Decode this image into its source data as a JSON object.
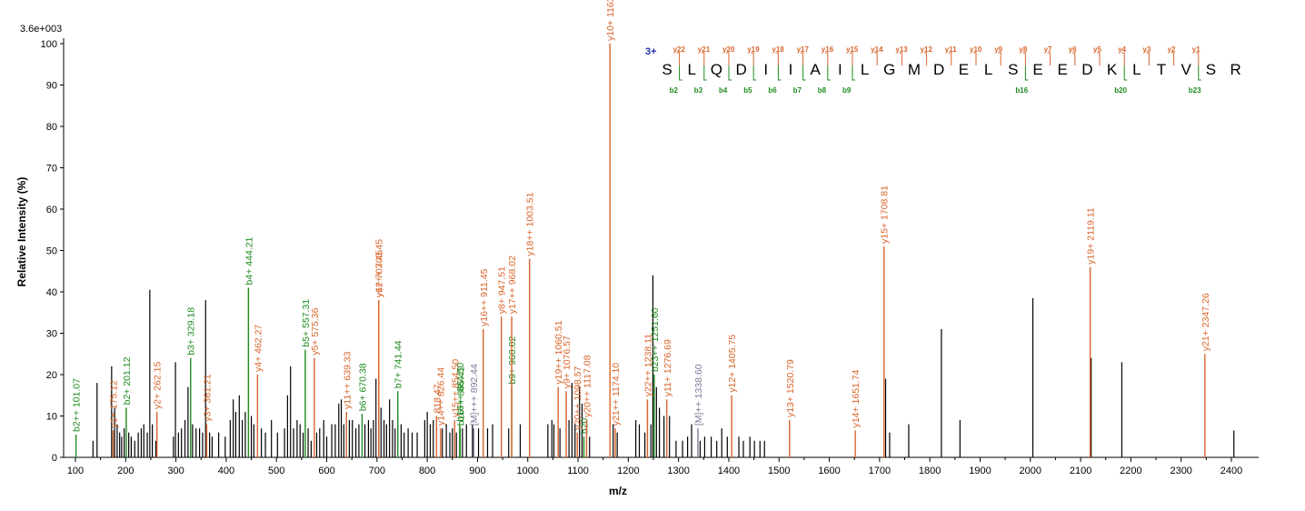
{
  "colors": {
    "y_ion": "#d9652b",
    "b_ion": "#1e8a1e",
    "precursor": "#7b7b9b",
    "unassigned": "#000000",
    "charge": "#1f2fa8"
  },
  "scale_label": "3.6e+003",
  "chart_data": {
    "type": "bar",
    "xlabel": "m/z",
    "ylabel": "Relative   Intensity (%)",
    "xlim": [
      80,
      2450
    ],
    "ylim": [
      0,
      100
    ],
    "x_ticks": [
      100,
      200,
      300,
      400,
      500,
      600,
      700,
      800,
      900,
      1000,
      1100,
      1200,
      1300,
      1400,
      1500,
      1600,
      1700,
      1800,
      1900,
      2000,
      2100,
      2200,
      2300,
      2400
    ],
    "y_ticks": [
      0,
      10,
      20,
      30,
      40,
      50,
      60,
      70,
      80,
      90,
      100
    ],
    "labeled_peaks": [
      {
        "mz": 101.07,
        "intensity": 5.5,
        "label": "b2++ 101.07",
        "ion": "b"
      },
      {
        "mz": 175.12,
        "intensity": 6.5,
        "label": "y1+ 175.12",
        "ion": "y"
      },
      {
        "mz": 201.12,
        "intensity": 12,
        "label": "b2+ 201.12",
        "ion": "b"
      },
      {
        "mz": 262.15,
        "intensity": 11,
        "label": "y2+ 262.15",
        "ion": "y"
      },
      {
        "mz": 329.18,
        "intensity": 24,
        "label": "b3+ 329.18",
        "ion": "b"
      },
      {
        "mz": 361.21,
        "intensity": 8,
        "label": "y3+ 361.21",
        "ion": "y"
      },
      {
        "mz": 444.21,
        "intensity": 41,
        "label": "b4+ 444.21",
        "ion": "b"
      },
      {
        "mz": 462.27,
        "intensity": 20,
        "label": "y4+ 462.27",
        "ion": "y"
      },
      {
        "mz": 557.31,
        "intensity": 26,
        "label": "b5+ 557.31",
        "ion": "b"
      },
      {
        "mz": 575.36,
        "intensity": 24,
        "label": "y5+ 575.36",
        "ion": "y"
      },
      {
        "mz": 639.33,
        "intensity": 11,
        "label": "y11++ 639.33",
        "ion": "y"
      },
      {
        "mz": 670.38,
        "intensity": 10.5,
        "label": "b6+ 670.38",
        "ion": "b"
      },
      {
        "mz": 703.45,
        "intensity": 38,
        "label": "y6+ 703.45",
        "ion": "y"
      },
      {
        "mz": 703.45,
        "intensity": 38,
        "label": "y12++ 703.45",
        "ion": "y"
      },
      {
        "mz": 741.44,
        "intensity": 16,
        "label": "b7+ 741.44",
        "ion": "b"
      },
      {
        "mz": 818.47,
        "intensity": 10,
        "label": "818.47",
        "ion": "y"
      },
      {
        "mz": 826.44,
        "intensity": 7,
        "label": "y14++ 826.44",
        "ion": "y"
      },
      {
        "mz": 854.5,
        "intensity": 9,
        "label": "y15++ 854.50",
        "ion": "y"
      },
      {
        "mz": 864.5,
        "intensity": 8,
        "label": "b16++ 864.50",
        "ion": "b"
      },
      {
        "mz": 865.41,
        "intensity": 7,
        "label": "b16++ 865.41",
        "ion": "b"
      },
      {
        "mz": 892.44,
        "intensity": 7,
        "label": "[M]+++ 892.44",
        "ion": "M"
      },
      {
        "mz": 911.45,
        "intensity": 31,
        "label": "y16++ 911.45",
        "ion": "y"
      },
      {
        "mz": 947.51,
        "intensity": 34,
        "label": "y8+ 947.51",
        "ion": "y"
      },
      {
        "mz": 968.02,
        "intensity": 17,
        "label": "b9+ 968.02",
        "ion": "b"
      },
      {
        "mz": 968.02,
        "intensity": 34,
        "label": "y17++ 968.02",
        "ion": "y"
      },
      {
        "mz": 1003.51,
        "intensity": 48,
        "label": "y18++ 1003.51",
        "ion": "y"
      },
      {
        "mz": 1060.51,
        "intensity": 17,
        "label": "y19++ 1060.51",
        "ion": "y"
      },
      {
        "mz": 1076.57,
        "intensity": 16,
        "label": "y9+ 1076.57",
        "ion": "y"
      },
      {
        "mz": 1098.57,
        "intensity": 6,
        "label": "y20++ 1098.57",
        "ion": "y"
      },
      {
        "mz": 1111.7,
        "intensity": 5,
        "label": "b20",
        "ion": "b"
      },
      {
        "mz": 1117.08,
        "intensity": 9,
        "label": "y20++ 1117.08",
        "ion": "y"
      },
      {
        "mz": 1163.58,
        "intensity": 100,
        "label": "y10+ 1163.58",
        "ion": "y"
      },
      {
        "mz": 1174.1,
        "intensity": 7,
        "label": "y21++ 1174.10",
        "ion": "y"
      },
      {
        "mz": 1238.11,
        "intensity": 14,
        "label": "y22++ 1238.11",
        "ion": "y"
      },
      {
        "mz": 1251.6,
        "intensity": 20,
        "label": "b23++ 1251.60",
        "ion": "b"
      },
      {
        "mz": 1276.69,
        "intensity": 14,
        "label": "y11+ 1276.69",
        "ion": "y"
      },
      {
        "mz": 1338.6,
        "intensity": 7,
        "label": "[M]++ 1338.60",
        "ion": "M"
      },
      {
        "mz": 1405.75,
        "intensity": 15,
        "label": "y12+ 1405.75",
        "ion": "y"
      },
      {
        "mz": 1520.79,
        "intensity": 9,
        "label": "y13+ 1520.79",
        "ion": "y"
      },
      {
        "mz": 1651.74,
        "intensity": 6.5,
        "label": "y14+ 1651.74",
        "ion": "y"
      },
      {
        "mz": 1708.81,
        "intensity": 51,
        "label": "y15+ 1708.81",
        "ion": "y"
      },
      {
        "mz": 2119.11,
        "intensity": 46,
        "label": "y19+ 2119.11",
        "ion": "y"
      },
      {
        "mz": 2347.26,
        "intensity": 25,
        "label": "y21+ 2347.26",
        "ion": "y"
      }
    ],
    "unlabeled_peaks": [
      [
        135,
        4
      ],
      [
        143,
        18
      ],
      [
        172,
        22
      ],
      [
        178,
        12
      ],
      [
        183,
        8
      ],
      [
        188,
        6
      ],
      [
        192,
        5
      ],
      [
        197,
        7
      ],
      [
        206,
        6
      ],
      [
        211,
        5
      ],
      [
        218,
        4
      ],
      [
        225,
        6
      ],
      [
        231,
        7
      ],
      [
        236,
        8
      ],
      [
        243,
        6
      ],
      [
        248,
        40.5
      ],
      [
        253,
        8
      ],
      [
        260,
        4
      ],
      [
        295,
        5
      ],
      [
        299,
        23
      ],
      [
        305,
        6
      ],
      [
        311,
        7
      ],
      [
        318,
        9
      ],
      [
        324,
        17
      ],
      [
        333,
        8
      ],
      [
        340,
        7
      ],
      [
        347,
        7
      ],
      [
        353,
        6
      ],
      [
        359,
        38
      ],
      [
        367,
        6
      ],
      [
        372,
        5
      ],
      [
        385,
        6
      ],
      [
        398,
        5
      ],
      [
        408,
        9
      ],
      [
        414,
        14
      ],
      [
        419,
        11
      ],
      [
        426,
        15
      ],
      [
        432,
        9
      ],
      [
        438,
        11
      ],
      [
        450,
        10
      ],
      [
        455,
        8
      ],
      [
        470,
        7
      ],
      [
        478,
        6
      ],
      [
        490,
        9
      ],
      [
        502,
        6
      ],
      [
        516,
        7
      ],
      [
        522,
        15
      ],
      [
        528,
        22
      ],
      [
        534,
        7
      ],
      [
        541,
        9
      ],
      [
        547,
        8
      ],
      [
        553,
        6
      ],
      [
        563,
        7
      ],
      [
        569,
        4
      ],
      [
        580,
        6
      ],
      [
        586,
        7
      ],
      [
        594,
        9
      ],
      [
        600,
        5
      ],
      [
        610,
        8
      ],
      [
        617,
        8
      ],
      [
        624,
        13
      ],
      [
        629,
        14
      ],
      [
        634,
        8
      ],
      [
        645,
        9
      ],
      [
        651,
        9
      ],
      [
        658,
        7
      ],
      [
        664,
        8
      ],
      [
        676,
        8
      ],
      [
        683,
        9
      ],
      [
        688,
        7
      ],
      [
        693,
        9
      ],
      [
        698,
        19
      ],
      [
        708,
        12
      ],
      [
        714,
        9
      ],
      [
        719,
        8
      ],
      [
        725,
        14
      ],
      [
        731,
        9
      ],
      [
        736,
        7
      ],
      [
        748,
        8
      ],
      [
        754,
        6
      ],
      [
        762,
        7
      ],
      [
        770,
        6
      ],
      [
        780,
        6
      ],
      [
        795,
        9
      ],
      [
        800,
        11
      ],
      [
        806,
        8
      ],
      [
        812,
        9
      ],
      [
        830,
        7
      ],
      [
        838,
        8
      ],
      [
        845,
        6
      ],
      [
        850,
        7
      ],
      [
        858,
        6
      ],
      [
        870,
        7
      ],
      [
        878,
        8
      ],
      [
        890,
        8
      ],
      [
        902,
        7
      ],
      [
        920,
        7
      ],
      [
        930,
        8
      ],
      [
        962,
        7
      ],
      [
        985,
        8
      ],
      [
        1040,
        8
      ],
      [
        1048,
        9
      ],
      [
        1052,
        8
      ],
      [
        1064,
        7
      ],
      [
        1082,
        9
      ],
      [
        1088,
        18
      ],
      [
        1094,
        8
      ],
      [
        1103,
        17
      ],
      [
        1108,
        13
      ],
      [
        1123,
        5
      ],
      [
        1170,
        8
      ],
      [
        1178,
        6
      ],
      [
        1215,
        9
      ],
      [
        1222,
        8
      ],
      [
        1233,
        6
      ],
      [
        1245,
        8
      ],
      [
        1249,
        44
      ],
      [
        1256,
        17
      ],
      [
        1262,
        12
      ],
      [
        1271,
        10
      ],
      [
        1282,
        10
      ],
      [
        1295,
        4
      ],
      [
        1308,
        4
      ],
      [
        1318,
        5
      ],
      [
        1326,
        8
      ],
      [
        1343,
        4
      ],
      [
        1352,
        5
      ],
      [
        1365,
        5
      ],
      [
        1376,
        4
      ],
      [
        1386,
        7
      ],
      [
        1397,
        5
      ],
      [
        1420,
        5
      ],
      [
        1429,
        4
      ],
      [
        1442,
        5
      ],
      [
        1451,
        4
      ],
      [
        1462,
        4
      ],
      [
        1471,
        4
      ],
      [
        1712,
        19
      ],
      [
        1720,
        6
      ],
      [
        1758,
        8
      ],
      [
        1823,
        31
      ],
      [
        1860,
        9
      ],
      [
        2005,
        38.5
      ],
      [
        2121,
        24
      ],
      [
        2182,
        23
      ],
      [
        2405,
        6.5
      ]
    ]
  },
  "sequence": {
    "charge": "3+",
    "residues": [
      "S",
      "L",
      "Q",
      "D",
      "I",
      "I",
      "A",
      "I",
      "L",
      "G",
      "M",
      "D",
      "E",
      "L",
      "S",
      "E",
      "E",
      "D",
      "K",
      "L",
      "T",
      "V",
      "S",
      "R"
    ],
    "y_tags": [
      {
        "after": 1,
        "num": "22"
      },
      {
        "after": 2,
        "num": "21"
      },
      {
        "after": 3,
        "num": "20"
      },
      {
        "after": 4,
        "num": "19"
      },
      {
        "after": 5,
        "num": "18"
      },
      {
        "after": 6,
        "num": "17"
      },
      {
        "after": 7,
        "num": "16"
      },
      {
        "after": 8,
        "num": "15"
      },
      {
        "after": 9,
        "num": "14"
      },
      {
        "after": 10,
        "num": "13"
      },
      {
        "after": 11,
        "num": "12"
      },
      {
        "after": 12,
        "num": "11"
      },
      {
        "after": 13,
        "num": "10"
      },
      {
        "after": 14,
        "num": "9"
      },
      {
        "after": 15,
        "num": "8"
      },
      {
        "after": 16,
        "num": "7"
      },
      {
        "after": 17,
        "num": "6"
      },
      {
        "after": 18,
        "num": "5"
      },
      {
        "after": 19,
        "num": "4"
      },
      {
        "after": 20,
        "num": "3"
      },
      {
        "after": 21,
        "num": "2"
      },
      {
        "after": 22,
        "num": "1"
      }
    ],
    "b_tags": [
      {
        "after": 1,
        "num": "2"
      },
      {
        "after": 2,
        "num": "3"
      },
      {
        "after": 3,
        "num": "4"
      },
      {
        "after": 4,
        "num": "5"
      },
      {
        "after": 5,
        "num": "6"
      },
      {
        "after": 6,
        "num": "7"
      },
      {
        "after": 7,
        "num": "8"
      },
      {
        "after": 8,
        "num": "9"
      },
      {
        "after": 15,
        "num": "16"
      },
      {
        "after": 19,
        "num": "20"
      },
      {
        "after": 22,
        "num": "23"
      }
    ]
  }
}
